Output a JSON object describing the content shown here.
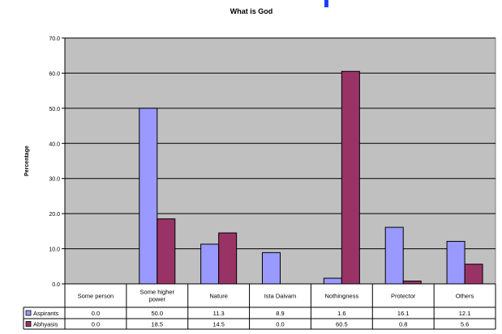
{
  "chart_data": {
    "type": "bar",
    "title": "What is God",
    "ylabel": "Percentage",
    "xlabel": "",
    "ylim": [
      0,
      70
    ],
    "yticks": [
      "0.0",
      "10.0",
      "20.0",
      "30.0",
      "40.0",
      "50.0",
      "60.0",
      "70.0"
    ],
    "grid": true,
    "legend_placement": "data-table",
    "categories": [
      "Some person",
      "Some higher power",
      "Nature",
      "Ista Daivam",
      "Nothingness",
      "Protector",
      "Others"
    ],
    "series": [
      {
        "name": "Aspirants",
        "color": "#9999ff",
        "values": [
          0.0,
          50.0,
          11.3,
          8.9,
          1.6,
          16.1,
          12.1
        ],
        "labels": [
          "0.0",
          "50.0",
          "11.3",
          "8.9",
          "1.6",
          "16.1",
          "12.1"
        ]
      },
      {
        "name": "Abhyasis",
        "color": "#993366",
        "values": [
          0.0,
          18.5,
          14.5,
          0.0,
          60.5,
          0.8,
          5.6
        ],
        "labels": [
          "0.0",
          "18.5",
          "14.5",
          "0.0",
          "60.5",
          "0.8",
          "5.6"
        ]
      }
    ],
    "plot_background": "#c0c0c0"
  }
}
